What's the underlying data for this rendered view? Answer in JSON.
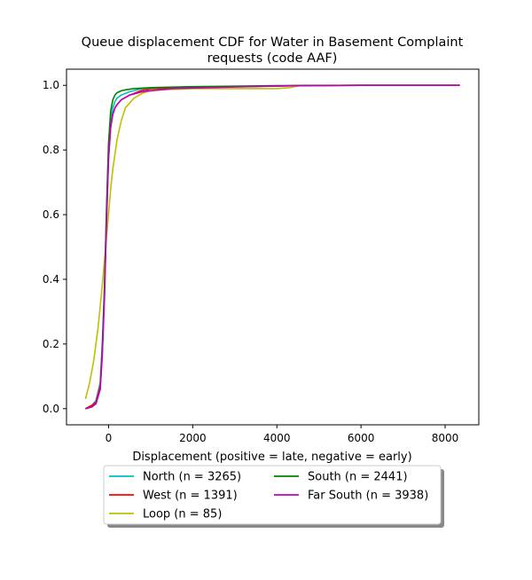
{
  "chart_data": {
    "type": "line",
    "title_line1": "Queue displacement CDF for Water in Basement Complaint",
    "title_line2": "requests (code AAF)",
    "xlabel": "Displacement (positive = late, negative = early)",
    "ylabel": "",
    "xlim": [
      -1000,
      8800
    ],
    "ylim": [
      -0.05,
      1.05
    ],
    "xticks": [
      0,
      2000,
      4000,
      6000,
      8000
    ],
    "yticks": [
      0.0,
      0.2,
      0.4,
      0.6,
      0.8,
      1.0
    ],
    "xtick_labels": [
      "0",
      "2000",
      "4000",
      "6000",
      "8000"
    ],
    "ytick_labels": [
      "0.0",
      "0.2",
      "0.4",
      "0.6",
      "0.8",
      "1.0"
    ],
    "grid": false,
    "legend_position": "below",
    "series": [
      {
        "name": "North (n = 3265)",
        "color": "#00bfbf",
        "x": [
          -550,
          -400,
          -300,
          -200,
          -150,
          -100,
          -50,
          0,
          50,
          100,
          150,
          200,
          300,
          500,
          800,
          1500,
          3000,
          4500,
          6000,
          8350
        ],
        "y": [
          0.0,
          0.01,
          0.025,
          0.08,
          0.2,
          0.37,
          0.6,
          0.8,
          0.89,
          0.93,
          0.95,
          0.96,
          0.97,
          0.98,
          0.99,
          0.993,
          0.996,
          0.999,
          1.0,
          1.0
        ]
      },
      {
        "name": "West (n = 1391)",
        "color": "#ff0000",
        "x": [
          -550,
          -400,
          -300,
          -200,
          -150,
          -100,
          -50,
          0,
          50,
          100,
          150,
          200,
          300,
          500,
          800,
          1500,
          3000,
          4500,
          6000,
          8350
        ],
        "y": [
          0.0,
          0.01,
          0.02,
          0.07,
          0.18,
          0.35,
          0.58,
          0.78,
          0.87,
          0.91,
          0.93,
          0.94,
          0.955,
          0.97,
          0.985,
          0.992,
          0.996,
          0.999,
          1.0,
          1.0
        ]
      },
      {
        "name": "Loop (n = 85)",
        "color": "#bfbf00",
        "x": [
          -550,
          -450,
          -350,
          -250,
          -150,
          -50,
          0,
          50,
          100,
          200,
          300,
          400,
          600,
          800,
          1000,
          2000,
          4000,
          4300,
          4600,
          6000,
          8350
        ],
        "y": [
          0.03,
          0.08,
          0.15,
          0.25,
          0.38,
          0.53,
          0.6,
          0.68,
          0.74,
          0.83,
          0.89,
          0.93,
          0.96,
          0.975,
          0.985,
          0.99,
          0.99,
          0.993,
          1.0,
          1.0,
          1.0
        ]
      },
      {
        "name": "South (n = 2441)",
        "color": "#008000",
        "x": [
          -550,
          -400,
          -300,
          -200,
          -150,
          -100,
          -50,
          0,
          50,
          100,
          150,
          200,
          300,
          400,
          600,
          1000,
          2000,
          4000,
          6000,
          8350
        ],
        "y": [
          0.0,
          0.005,
          0.015,
          0.06,
          0.17,
          0.36,
          0.62,
          0.82,
          0.92,
          0.955,
          0.97,
          0.977,
          0.983,
          0.986,
          0.99,
          0.993,
          0.996,
          0.999,
          1.0,
          1.0
        ]
      },
      {
        "name": "Far South (n = 3938)",
        "color": "#bf00bf",
        "x": [
          -550,
          -400,
          -300,
          -200,
          -150,
          -100,
          -50,
          0,
          50,
          100,
          150,
          200,
          300,
          500,
          800,
          1500,
          3000,
          4500,
          6000,
          8350
        ],
        "y": [
          0.0,
          0.005,
          0.015,
          0.06,
          0.16,
          0.33,
          0.57,
          0.77,
          0.87,
          0.91,
          0.93,
          0.94,
          0.955,
          0.97,
          0.98,
          0.99,
          0.995,
          0.999,
          1.0,
          1.0
        ]
      }
    ],
    "legend_order": [
      0,
      3,
      1,
      4,
      2
    ]
  }
}
